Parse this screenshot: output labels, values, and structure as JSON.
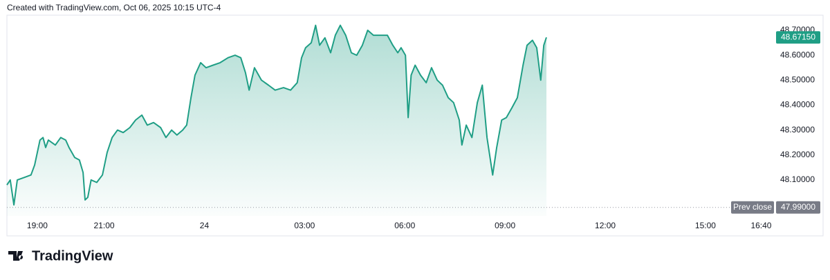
{
  "header": "Created with TradingView.com, Oct 06, 2025 10:15 UTC-4",
  "footer": {
    "logo": "TradingView"
  },
  "chart_data": {
    "type": "area",
    "x": [
      18.09,
      18.19,
      18.3,
      18.4,
      18.61,
      18.81,
      18.92,
      19.08,
      19.17,
      19.25,
      19.33,
      19.54,
      19.7,
      19.85,
      19.95,
      20.12,
      20.26,
      20.37,
      20.43,
      20.51,
      20.61,
      20.78,
      20.95,
      21.09,
      21.24,
      21.4,
      21.57,
      21.77,
      21.94,
      22.13,
      22.29,
      22.48,
      22.69,
      22.85,
      23.02,
      23.18,
      23.35,
      23.47,
      23.6,
      23.72,
      23.89,
      24.05,
      24.26,
      24.47,
      24.71,
      24.92,
      25.09,
      25.23,
      25.34,
      25.5,
      25.71,
      25.92,
      26.12,
      26.37,
      26.58,
      26.78,
      26.91,
      27.03,
      27.2,
      27.33,
      27.45,
      27.61,
      27.78,
      27.92,
      28.07,
      28.23,
      28.4,
      28.56,
      28.73,
      28.89,
      29.06,
      29.27,
      29.48,
      29.64,
      29.79,
      29.89,
      30.02,
      30.1,
      30.19,
      30.31,
      30.47,
      30.64,
      30.8,
      30.97,
      31.13,
      31.3,
      31.46,
      31.63,
      31.71,
      31.84,
      32.01,
      32.17,
      32.32,
      32.46,
      32.63,
      32.75,
      32.9,
      33.04,
      33.21,
      33.37,
      33.54,
      33.66,
      33.82,
      33.95,
      34.07,
      34.16,
      34.24
    ],
    "series": [
      {
        "color": "#1f9e85",
        "values": [
          48.08,
          48.1,
          48.0,
          48.1,
          48.11,
          48.12,
          48.16,
          48.26,
          48.27,
          48.23,
          48.26,
          48.24,
          48.27,
          48.26,
          48.23,
          48.19,
          48.18,
          48.13,
          48.02,
          48.03,
          48.1,
          48.09,
          48.12,
          48.21,
          48.27,
          48.3,
          48.29,
          48.31,
          48.34,
          48.36,
          48.32,
          48.33,
          48.31,
          48.27,
          48.3,
          48.28,
          48.3,
          48.32,
          48.43,
          48.52,
          48.57,
          48.55,
          48.56,
          48.57,
          48.59,
          48.6,
          48.59,
          48.53,
          48.46,
          48.55,
          48.5,
          48.48,
          48.46,
          48.47,
          48.46,
          48.49,
          48.59,
          48.63,
          48.65,
          48.72,
          48.64,
          48.67,
          48.61,
          48.68,
          48.72,
          48.68,
          48.61,
          48.6,
          48.64,
          48.7,
          48.68,
          48.68,
          48.68,
          48.64,
          48.61,
          48.63,
          48.6,
          48.35,
          48.52,
          48.56,
          48.52,
          48.49,
          48.55,
          48.5,
          48.48,
          48.43,
          48.41,
          48.34,
          48.24,
          48.32,
          48.27,
          48.41,
          48.48,
          48.27,
          48.12,
          48.23,
          48.34,
          48.35,
          48.39,
          48.43,
          48.56,
          48.64,
          48.66,
          48.63,
          48.5,
          48.64,
          48.6715
        ]
      }
    ],
    "xlim": [
      18.09,
      41.03
    ],
    "ylim": [
      47.956,
      48.744
    ],
    "xticks": [
      {
        "value": 19,
        "label": "19:00"
      },
      {
        "value": 21,
        "label": "21:00"
      },
      24,
      {
        "value": 27,
        "label": "03:00"
      },
      {
        "value": 30,
        "label": "06:00"
      },
      {
        "value": 33,
        "label": "09:00"
      },
      {
        "value": 36,
        "label": "12:00"
      },
      {
        "value": 39,
        "label": "15:00"
      },
      {
        "value": 40.667,
        "label": "16:40"
      }
    ],
    "yticks": [
      {
        "value": 48.1,
        "label": "48.10000"
      },
      {
        "value": 48.2,
        "label": "48.20000"
      },
      {
        "value": 48.3,
        "label": "48.30000"
      },
      {
        "value": 48.4,
        "label": "48.40000"
      },
      {
        "value": 48.5,
        "label": "48.50000"
      },
      {
        "value": 48.6,
        "label": "48.60000"
      },
      {
        "value": 48.7,
        "label": "48.70000"
      }
    ],
    "last_price": {
      "value": 48.6715,
      "label": "48.67150"
    },
    "prev_close": {
      "name": "Prev close",
      "value": 47.99,
      "label": "47.99000"
    }
  }
}
